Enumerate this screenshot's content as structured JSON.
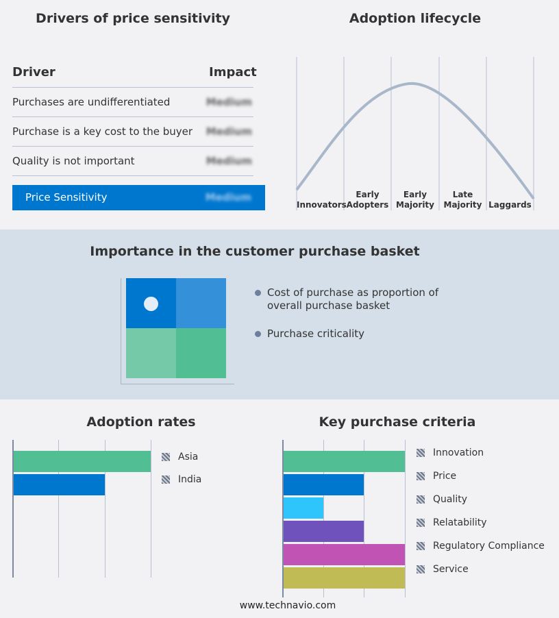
{
  "drivers": {
    "title": "Drivers of price sensitivity",
    "header": {
      "driver": "Driver",
      "impact": "Impact"
    },
    "rows": [
      {
        "driver": "Purchases are undifferentiated",
        "impact": "Medium"
      },
      {
        "driver": "Purchase is a key cost to the buyer",
        "impact": "Medium"
      },
      {
        "driver": "Quality is not important",
        "impact": "Medium"
      }
    ],
    "summary": {
      "label": "Price Sensitivity",
      "impact": "Medium"
    },
    "accent": "#0077cf"
  },
  "lifecycle": {
    "title": "Adoption lifecycle",
    "stages": [
      [
        "Innovators"
      ],
      [
        "Early",
        "Adopters"
      ],
      [
        "Early",
        "Majority"
      ],
      [
        "Late",
        "Majority"
      ],
      [
        "Laggards"
      ]
    ],
    "curve_color": "#a9b7ca"
  },
  "basket": {
    "title": "Importance in the customer purchase basket",
    "legend": [
      "Cost of purchase as proportion of overall purchase basket",
      "Purchase criticality"
    ],
    "quadrant_colors": [
      "#0077cf",
      "#3390d9",
      "#75c8a8",
      "#52be94"
    ],
    "highlight_quadrant": "top-left"
  },
  "chart_data": [
    {
      "type": "bar",
      "orientation": "horizontal",
      "title": "Adoption rates",
      "categories": [
        "Asia",
        "India"
      ],
      "values": [
        3,
        2
      ],
      "colors": [
        "#52be94",
        "#0077cf"
      ],
      "xlim": [
        0,
        3
      ],
      "grid": true,
      "legend": "right"
    },
    {
      "type": "bar",
      "orientation": "horizontal",
      "title": "Key purchase criteria",
      "categories": [
        "Innovation",
        "Price",
        "Quality",
        "Relatability",
        "Regulatory Compliance",
        "Service"
      ],
      "values": [
        3,
        2,
        1,
        2,
        3,
        3
      ],
      "colors": [
        "#52be94",
        "#0077cf",
        "#2ec4fc",
        "#7052bc",
        "#c053b4",
        "#c0bb55"
      ],
      "xlim": [
        0,
        3
      ],
      "grid": true,
      "legend": "right"
    }
  ],
  "footer": "www.technavio.com"
}
